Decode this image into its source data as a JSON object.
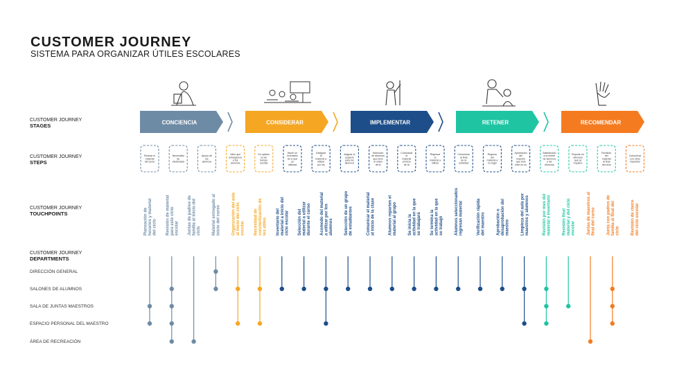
{
  "header": {
    "title": "CUSTOMER JOURNEY",
    "subtitle": "SISTEMA PARA ORGANIZAR ÚTILES ESCOLARES"
  },
  "row_labels": {
    "stages": {
      "line1": "CUSTOMER JOURNEY",
      "line2": "STAGES"
    },
    "steps": {
      "line1": "CUSTOMER JOURNEY",
      "line2": "STEPS"
    },
    "touchpoints": {
      "line1": "CUSTOMER JOURNEY",
      "line2": "TOUCHPOINTS"
    },
    "departments": {
      "line1": "CUSTOMER JOURNEY",
      "line2": "DEPARTMENTS"
    }
  },
  "colors": {
    "conciencia": "#6e8ba6",
    "considerar": "#f5a623",
    "implementar": "#1d4e89",
    "retener": "#1fc4a3",
    "recomendar": "#f47b20"
  },
  "stages": [
    {
      "label": "CONCIENCIA",
      "color": "#6e8ba6",
      "icon": "person-reading-icon"
    },
    {
      "label": "CONSIDERAR",
      "color": "#f5a623",
      "icon": "classroom-icon"
    },
    {
      "label": "IMPLEMENTAR",
      "color": "#1d4e89",
      "icon": "person-writing-icon"
    },
    {
      "label": "RETENER",
      "color": "#1fc4a3",
      "icon": "teacher-student-icon"
    },
    {
      "label": "RECOMENDAR",
      "color": "#f47b20",
      "icon": "raised-hand-icon"
    }
  ],
  "steps": [
    {
      "text": "Revisar el material del curso",
      "color": "#6e8ba6"
    },
    {
      "text": "Necesidad de efectividad",
      "color": "#6e8ba6"
    },
    {
      "text": "Apoyo de los alumnos",
      "color": "#6e8ba6"
    },
    {
      "text": "Valor que entregamos a los alumnos",
      "color": "#f5a623"
    },
    {
      "text": "Su opinion es de tiempo escolar",
      "color": "#f5a623"
    },
    {
      "text": "Hacer un inventario de lo que se utilizara el ciclo escolar",
      "color": "#1d4e89"
    },
    {
      "text": "Designar el material a utilizar por los alumnos",
      "color": "#1d4e89"
    },
    {
      "text": "Asignar el espacio para los alumnos",
      "color": "#1d4e89"
    },
    {
      "text": "Selección de alumnos que lleve el orden de la clase",
      "color": "#1d4e89"
    },
    {
      "text": "Comunicar el material al inicio de la clase",
      "color": "#1d4e89"
    },
    {
      "text": "Regresar el material a utilizar",
      "color": "#1d4e89"
    },
    {
      "text": "Comunicar al final de la actividad",
      "color": "#1d4e89"
    },
    {
      "text": "Regreso del material a su lugar",
      "color": "#1d4e89"
    },
    {
      "text": "Aprobación del maestro que todo esté en su sitio correcto",
      "color": "#1d4e89"
    },
    {
      "text": "Satisfacción a la mente de alumnos y los alumnos",
      "color": "#1fc4a3"
    },
    {
      "text": "Reporte en artículos que se requiere",
      "color": "#1fc4a3"
    },
    {
      "text": "Revisión del material al final del ciclo",
      "color": "#1fc4a3"
    },
    {
      "text": "Comunicar con otros maestros",
      "color": "#f47b20"
    }
  ],
  "touchpoints": [
    {
      "text": "Planeación de horarios y material del ciclo",
      "color": "#6e8ba6"
    },
    {
      "text": "Revisión de material para este ciclo escolar",
      "color": "#6e8ba6"
    },
    {
      "text": "Juntas de padres de familia al inicio del ciclo",
      "color": "#6e8ba6"
    },
    {
      "text": "Material entregado al inicio del curso",
      "color": "#6e8ba6"
    },
    {
      "text": "Organización del aula al inicio del ciclo escolar",
      "color": "#f5a623"
    },
    {
      "text": "Necesidad de concientización de los útiles",
      "color": "#f5a623"
    },
    {
      "text": "Inventario del material a inicio del ciclo escolar",
      "color": "#1d4e89"
    },
    {
      "text": "Selección del material a utilizar durante el curso",
      "color": "#1d4e89"
    },
    {
      "text": "Acomodo del material a utilizar por los alumnos",
      "color": "#1d4e89"
    },
    {
      "text": "Selección de un grupo de estudiantes",
      "color": "#1d4e89"
    },
    {
      "text": "Comunicar el material al inicio de la clase",
      "color": "#1d4e89"
    },
    {
      "text": "Alumnos reparten el material al grupo",
      "color": "#1d4e89"
    },
    {
      "text": "Se inicia la actividad en la que se trabajará",
      "color": "#1d4e89"
    },
    {
      "text": "Se termina la actividad en la que se trabajó",
      "color": "#1d4e89"
    },
    {
      "text": "Alumnos seleccionados regresan material",
      "color": "#1d4e89"
    },
    {
      "text": "Verificación rápida del maestro",
      "color": "#1d4e89"
    },
    {
      "text": "Aprobación o desaprobación del maestro",
      "color": "#1d4e89"
    },
    {
      "text": "Limpieza del aula por maestros y alumnos",
      "color": "#1d4e89"
    },
    {
      "text": "Revisión por mes del material e inventario",
      "color": "#1fc4a3"
    },
    {
      "text": "Revisión final material y del ciclo escolar",
      "color": "#1fc4a3"
    },
    {
      "text": "Juntas de maestros al final del curso",
      "color": "#f47b20"
    },
    {
      "text": "Junta con padres de familia al final del ciclo",
      "color": "#f47b20"
    },
    {
      "text": "Revisión de cierre del ciclo escolar",
      "color": "#f47b20"
    }
  ],
  "departments": [
    "DIRECCIÓN GENERAL",
    "SALONES DE ALUMNOS",
    "SALA DE JUNTAS MAESTROS",
    "ESPACIO PERSONAL DEL MAESTRO",
    "ÁREA DE RECREACIÓN"
  ],
  "department_dots": [
    [
      2,
      3
    ],
    [
      1,
      2,
      3,
      4
    ],
    [
      4
    ],
    [
      0,
      1
    ],
    [
      1,
      3
    ],
    [
      1,
      3
    ],
    [
      1
    ],
    [
      1
    ],
    [
      1,
      3
    ],
    [
      1
    ],
    [
      1
    ],
    [
      1
    ],
    [
      1
    ],
    [
      1
    ],
    [
      1
    ],
    [
      1
    ],
    [
      1
    ],
    [
      1,
      3
    ],
    [
      1,
      2,
      3
    ],
    [
      2
    ],
    [
      4
    ],
    [
      1,
      2,
      3
    ]
  ]
}
